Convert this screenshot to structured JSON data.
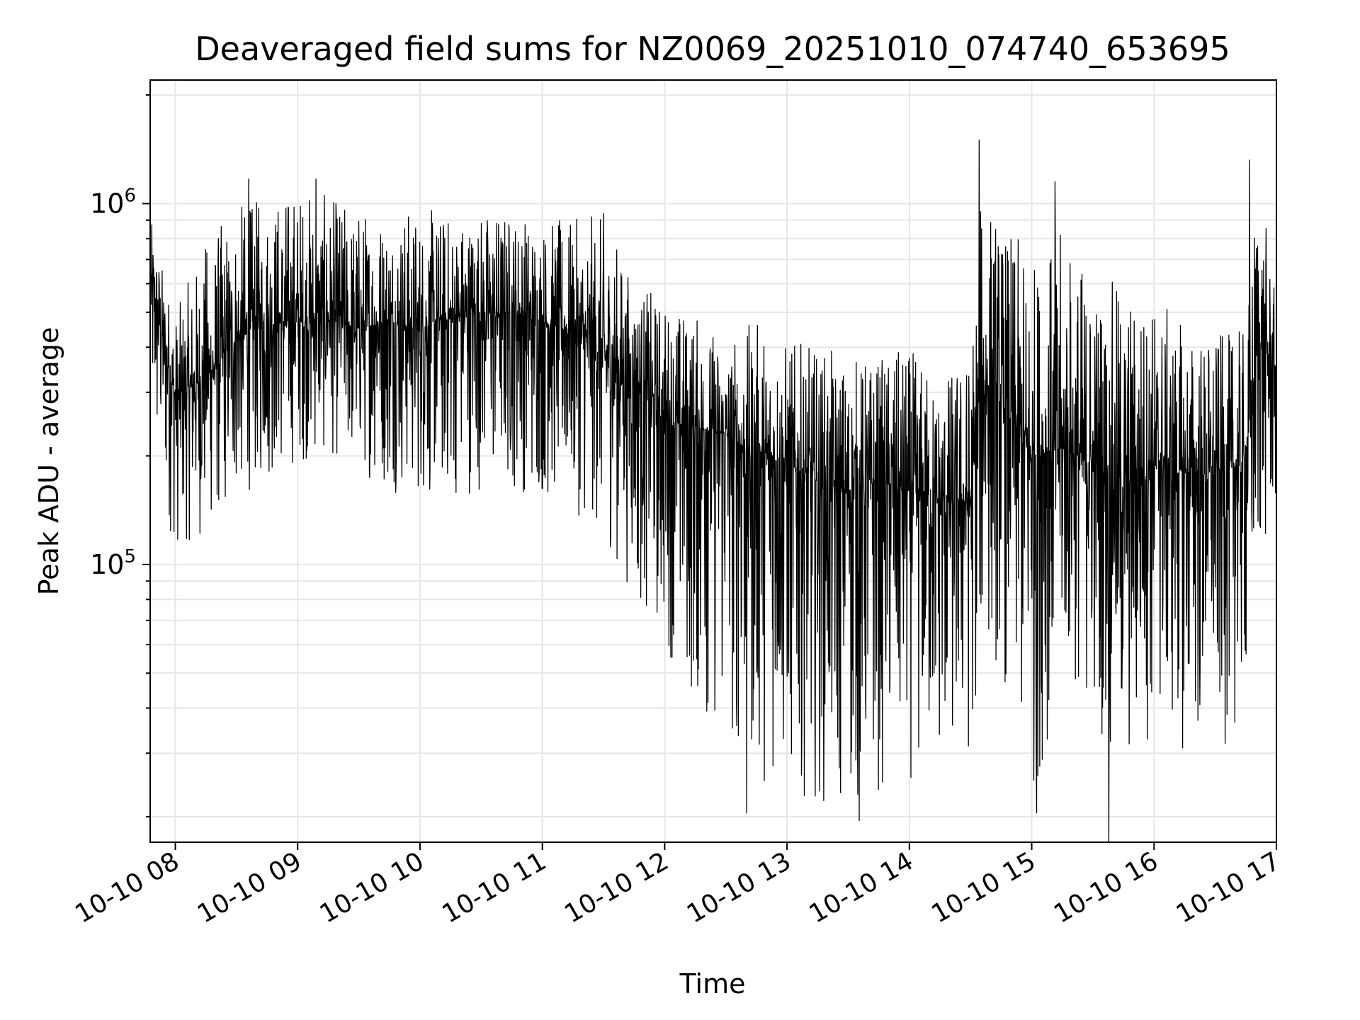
{
  "chart_data": {
    "type": "line",
    "title": "Deaveraged field sums for NZ0069_20251010_074740_653695",
    "xlabel": "Time",
    "ylabel": "Peak ADU - average",
    "y_scale": "log",
    "ylim": [
      17000,
      2200000
    ],
    "xlim_hours": [
      7.7944,
      17.0
    ],
    "x_tick_labels": [
      "10-10 08",
      "10-10 09",
      "10-10 10",
      "10-10 11",
      "10-10 12",
      "10-10 13",
      "10-10 14",
      "10-10 15",
      "10-10 16",
      "10-10 17"
    ],
    "x_tick_hours": [
      8,
      9,
      10,
      11,
      12,
      13,
      14,
      15,
      16,
      17
    ],
    "y_tick_labels": [
      {
        "base": "10",
        "exp": "5",
        "value": 100000
      },
      {
        "base": "10",
        "exp": "6",
        "value": 1000000
      }
    ],
    "grid": true,
    "series": [
      {
        "name": "field sums",
        "color": "#000000",
        "x_hours": [
          7.8,
          8.0,
          8.25,
          8.5,
          8.75,
          9.0,
          9.25,
          9.5,
          9.75,
          10.0,
          10.25,
          10.5,
          10.75,
          11.0,
          11.25,
          11.5,
          11.75,
          12.0,
          12.25,
          12.5,
          12.75,
          13.0,
          13.25,
          13.5,
          13.75,
          14.0,
          14.25,
          14.5,
          14.6,
          14.75,
          15.0,
          15.25,
          15.5,
          15.75,
          16.0,
          16.25,
          16.5,
          16.75,
          16.85,
          17.0
        ],
        "median": [
          620000,
          290000,
          330000,
          420000,
          470000,
          470000,
          480000,
          450000,
          470000,
          450000,
          480000,
          500000,
          500000,
          470000,
          440000,
          380000,
          330000,
          250000,
          240000,
          230000,
          200000,
          190000,
          170000,
          160000,
          170000,
          160000,
          150000,
          150000,
          320000,
          280000,
          200000,
          210000,
          190000,
          160000,
          200000,
          180000,
          180000,
          190000,
          420000,
          350000
        ],
        "upper": [
          900000,
          500000,
          800000,
          1000000,
          1050000,
          1150000,
          1050000,
          1000000,
          1000000,
          980000,
          950000,
          980000,
          980000,
          920000,
          900000,
          960000,
          600000,
          550000,
          500000,
          420000,
          480000,
          420000,
          400000,
          380000,
          380000,
          400000,
          330000,
          400000,
          1200000,
          900000,
          720000,
          850000,
          650000,
          600000,
          560000,
          460000,
          430000,
          450000,
          1300000,
          520000
        ],
        "lower": [
          180000,
          110000,
          120000,
          150000,
          170000,
          190000,
          200000,
          180000,
          160000,
          150000,
          150000,
          160000,
          160000,
          150000,
          140000,
          120000,
          80000,
          60000,
          38000,
          32000,
          25000,
          24000,
          22000,
          20000,
          23000,
          25000,
          27000,
          28000,
          60000,
          50000,
          21000,
          48000,
          40000,
          22000,
          35000,
          30000,
          28000,
          40000,
          90000,
          130000
        ],
        "notable_peaks": [
          {
            "hour": 8.6,
            "value": 1170000
          },
          {
            "hour": 9.15,
            "value": 1170000
          },
          {
            "hour": 14.57,
            "value": 1500000
          },
          {
            "hour": 15.19,
            "value": 1150000
          },
          {
            "hour": 16.78,
            "value": 1320000
          }
        ],
        "notable_dips": [
          {
            "hour": 12.67,
            "value": 20500
          },
          {
            "hour": 13.59,
            "value": 19500
          },
          {
            "hour": 15.04,
            "value": 20500
          },
          {
            "hour": 15.63,
            "value": 16500
          }
        ],
        "note": "Dense high-frequency time series (thousands of samples); values approximated by a rolling median with upper/lower envelope read from the plot."
      }
    ]
  }
}
